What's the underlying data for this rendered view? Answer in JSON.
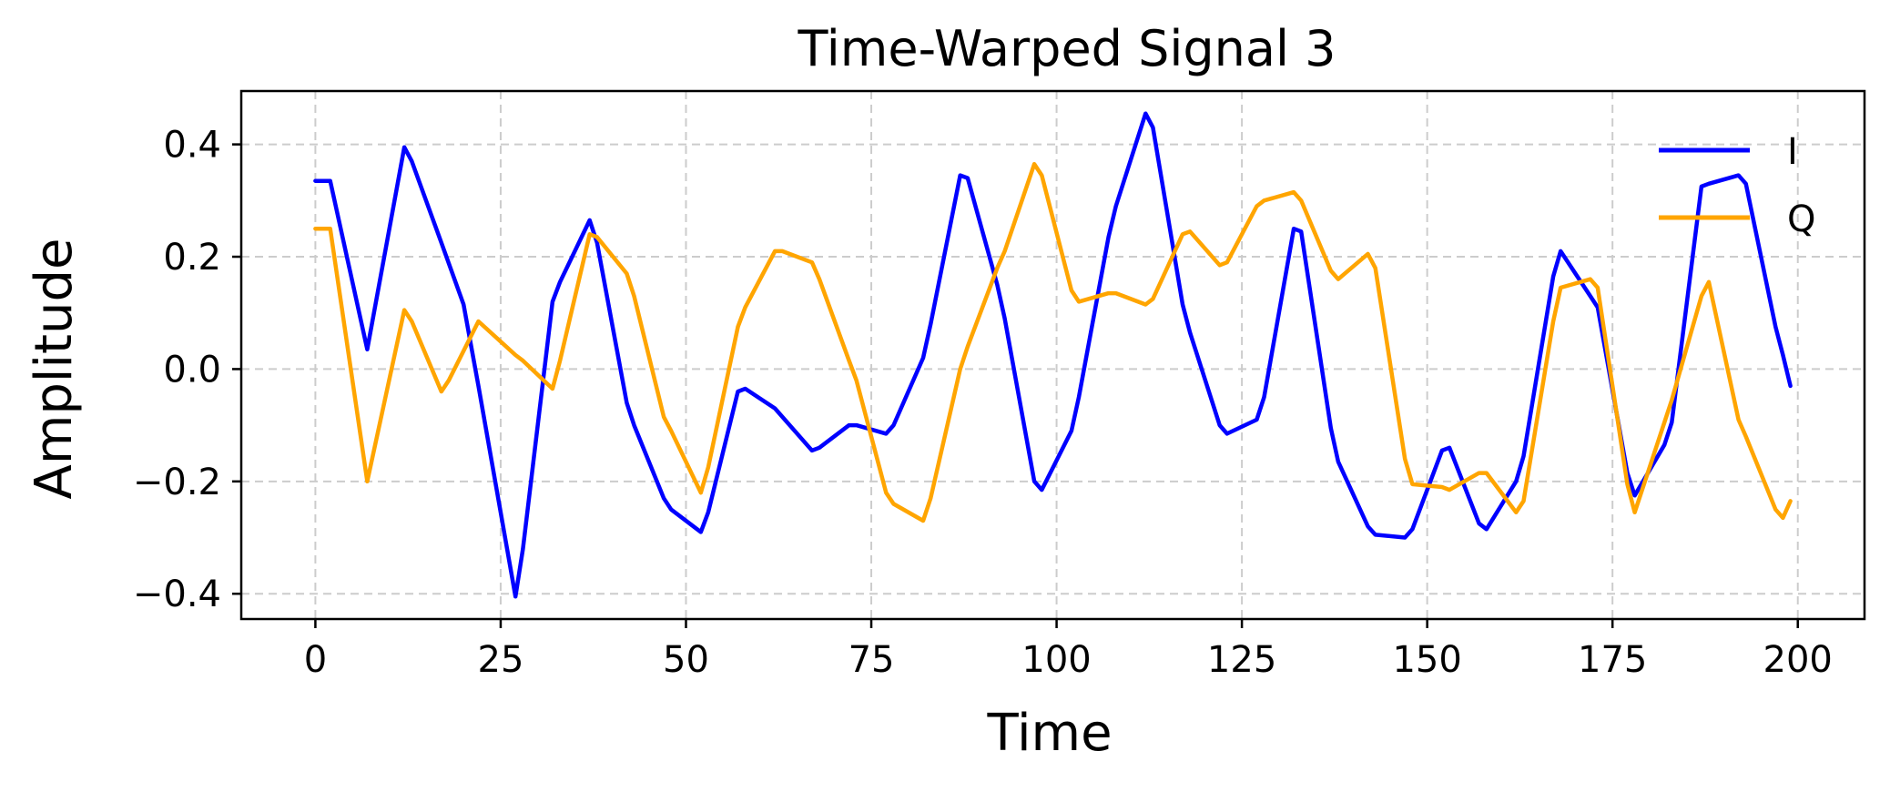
{
  "chart_data": {
    "type": "line",
    "title": "Time-Warped Signal 3",
    "xlabel": "Time",
    "ylabel": "Amplitude",
    "xlim": [
      -10,
      209
    ],
    "ylim": [
      -0.445,
      0.495
    ],
    "xticks": [
      0,
      25,
      50,
      75,
      100,
      125,
      150,
      175,
      200
    ],
    "xtick_labels": [
      "0",
      "25",
      "50",
      "75",
      "100",
      "125",
      "150",
      "175",
      "200"
    ],
    "yticks": [
      -0.4,
      -0.2,
      0.0,
      0.2,
      0.4
    ],
    "ytick_labels": [
      "−0.4",
      "−0.2",
      "0.0",
      "0.2",
      "0.4"
    ],
    "grid": true,
    "legend_position": "top-right",
    "series": [
      {
        "name": "I",
        "color": "#0000ff",
        "x": [
          0,
          2,
          7,
          12,
          13,
          17,
          20,
          22,
          27,
          28,
          32,
          33,
          37,
          38,
          42,
          43,
          47,
          48,
          52,
          53,
          57,
          58,
          62,
          67,
          68,
          72,
          73,
          77,
          78,
          82,
          83,
          87,
          88,
          92,
          93,
          97,
          98,
          102,
          103,
          107,
          108,
          112,
          113,
          117,
          118,
          122,
          123,
          127,
          128,
          132,
          133,
          137,
          138,
          142,
          143,
          147,
          148,
          152,
          153,
          157,
          158,
          162,
          163,
          167,
          168,
          172,
          173,
          177,
          178,
          182,
          183,
          187,
          188,
          192,
          193,
          197,
          198,
          199
        ],
        "y": [
          0.335,
          0.335,
          0.035,
          0.395,
          0.37,
          0.225,
          0.115,
          -0.03,
          -0.405,
          -0.32,
          0.12,
          0.155,
          0.265,
          0.225,
          -0.06,
          -0.1,
          -0.23,
          -0.25,
          -0.29,
          -0.255,
          -0.04,
          -0.035,
          -0.07,
          -0.145,
          -0.14,
          -0.1,
          -0.1,
          -0.115,
          -0.1,
          0.02,
          0.08,
          0.345,
          0.34,
          0.15,
          0.09,
          -0.2,
          -0.215,
          -0.11,
          -0.05,
          0.235,
          0.29,
          0.455,
          0.43,
          0.115,
          0.065,
          -0.1,
          -0.115,
          -0.09,
          -0.05,
          0.25,
          0.245,
          -0.105,
          -0.165,
          -0.28,
          -0.295,
          -0.3,
          -0.285,
          -0.145,
          -0.14,
          -0.275,
          -0.285,
          -0.2,
          -0.155,
          0.165,
          0.21,
          0.13,
          0.11,
          -0.185,
          -0.225,
          -0.135,
          -0.095,
          0.325,
          0.33,
          0.345,
          0.33,
          0.075,
          0.025,
          -0.03
        ]
      },
      {
        "name": "Q",
        "color": "#ffa500",
        "x": [
          0,
          2,
          7,
          12,
          13,
          17,
          18,
          22,
          27,
          28,
          32,
          33,
          37,
          38,
          42,
          43,
          47,
          48,
          52,
          53,
          57,
          58,
          62,
          63,
          67,
          68,
          72,
          73,
          77,
          78,
          82,
          83,
          87,
          88,
          92,
          93,
          97,
          98,
          102,
          103,
          107,
          108,
          112,
          113,
          117,
          118,
          122,
          123,
          127,
          128,
          132,
          133,
          137,
          138,
          142,
          143,
          147,
          148,
          152,
          153,
          157,
          158,
          162,
          163,
          167,
          168,
          172,
          173,
          177,
          178,
          182,
          183,
          187,
          188,
          192,
          193,
          197,
          198,
          199
        ],
        "y": [
          0.25,
          0.25,
          -0.2,
          0.105,
          0.085,
          -0.04,
          -0.02,
          0.085,
          0.025,
          0.015,
          -0.035,
          0.015,
          0.24,
          0.235,
          0.17,
          0.13,
          -0.085,
          -0.11,
          -0.22,
          -0.175,
          0.075,
          0.11,
          0.21,
          0.21,
          0.19,
          0.16,
          0.015,
          -0.02,
          -0.22,
          -0.24,
          -0.27,
          -0.23,
          0.0,
          0.04,
          0.18,
          0.21,
          0.365,
          0.345,
          0.14,
          0.12,
          0.135,
          0.135,
          0.115,
          0.125,
          0.24,
          0.245,
          0.185,
          0.19,
          0.29,
          0.3,
          0.315,
          0.3,
          0.175,
          0.16,
          0.205,
          0.18,
          -0.16,
          -0.205,
          -0.21,
          -0.215,
          -0.185,
          -0.185,
          -0.255,
          -0.235,
          0.085,
          0.145,
          0.16,
          0.145,
          -0.205,
          -0.255,
          -0.095,
          -0.055,
          0.13,
          0.155,
          -0.09,
          -0.12,
          -0.25,
          -0.265,
          -0.235
        ]
      }
    ]
  }
}
